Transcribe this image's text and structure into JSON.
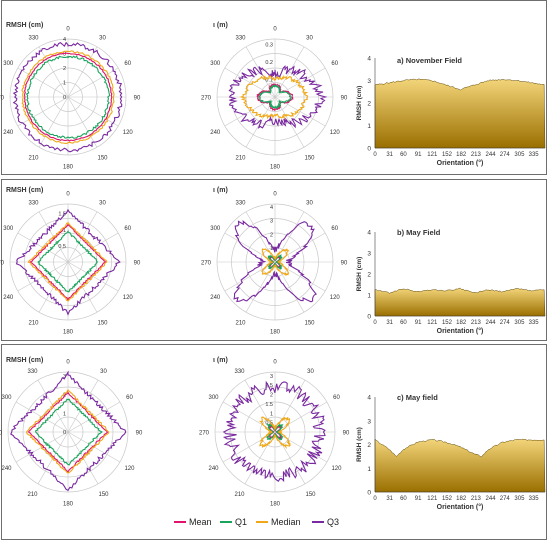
{
  "chart_data": [
    {
      "type": "polar",
      "panel": 1,
      "ylabel": "RMSH (cm)",
      "radial_ticks": [
        "0",
        "1",
        "2",
        "3",
        "4"
      ],
      "angle_ticks": [
        "0",
        "30",
        "60",
        "90",
        "120",
        "150",
        "180",
        "210",
        "240",
        "270",
        "300",
        "330"
      ],
      "rmax": 4,
      "series": [
        {
          "name": "Mean",
          "shape": "circle",
          "r": [
            3.0,
            3.0,
            3.0,
            3.0
          ],
          "noise": 0.04
        },
        {
          "name": "Q1",
          "shape": "circle",
          "r": [
            2.8,
            2.8,
            2.8,
            2.8
          ],
          "noise": 0.08
        },
        {
          "name": "Median",
          "shape": "circle",
          "r": [
            3.15,
            3.15,
            3.15,
            3.15
          ],
          "noise": 0.06
        },
        {
          "name": "Q3",
          "shape": "circle",
          "r": [
            3.65,
            3.65,
            3.65,
            3.65
          ],
          "noise": 0.14
        }
      ]
    },
    {
      "type": "polar",
      "panel": 1,
      "ylabel": "ι (m)",
      "radial_ticks": [
        "0.1",
        "0.2",
        "0.3"
      ],
      "angle_ticks": [
        "0",
        "30",
        "60",
        "90",
        "120",
        "150",
        "180",
        "210",
        "240",
        "270",
        "300",
        "330"
      ],
      "rmax": 0.33,
      "series": [
        {
          "name": "Mean",
          "shape": "leaf",
          "r": [
            0.07,
            0.1,
            0.07,
            0.1
          ],
          "noise": 0.005
        },
        {
          "name": "Q1",
          "shape": "leaf",
          "r": [
            0.06,
            0.09,
            0.06,
            0.09
          ],
          "noise": 0.006
        },
        {
          "name": "Median",
          "shape": "ellipse",
          "r": [
            0.1,
            0.18,
            0.1,
            0.18
          ],
          "noise": 0.012
        },
        {
          "name": "Q3",
          "shape": "ellipse",
          "r": [
            0.13,
            0.26,
            0.13,
            0.26
          ],
          "noise": 0.03
        }
      ]
    },
    {
      "type": "area",
      "panel_title": "a) November Field",
      "ylabel": "RMSH (cm)",
      "xlabel": "Orientation (°)",
      "x_ticks": [
        "0",
        "31",
        "60",
        "91",
        "121",
        "152",
        "182",
        "213",
        "244",
        "274",
        "305",
        "335"
      ],
      "y_ticks": [
        "0",
        "1",
        "2",
        "3",
        "4"
      ],
      "ylim": [
        0,
        4
      ],
      "x": [
        0,
        30,
        60,
        90,
        120,
        150,
        180,
        210,
        240,
        270,
        300,
        330,
        359
      ],
      "values": [
        2.8,
        2.9,
        3.0,
        3.05,
        3.0,
        2.8,
        2.6,
        2.8,
        3.0,
        3.05,
        3.0,
        2.9,
        2.8
      ]
    },
    {
      "type": "polar",
      "panel": 2,
      "ylabel": "RMSH (cm)",
      "radial_ticks": [
        "0.5",
        "1",
        "1.5"
      ],
      "angle_ticks": [
        "0",
        "30",
        "60",
        "90",
        "120",
        "150",
        "180",
        "210",
        "240",
        "270",
        "300",
        "330"
      ],
      "rmax": 1.8,
      "series": [
        {
          "name": "Mean",
          "shape": "square",
          "r": [
            1.05,
            1.05,
            1.05,
            1.05
          ],
          "noise": 0.02
        },
        {
          "name": "Q1",
          "shape": "square",
          "r": [
            0.85,
            0.85,
            0.85,
            0.85
          ],
          "noise": 0.03
        },
        {
          "name": "Median",
          "shape": "square",
          "r": [
            1.1,
            1.1,
            1.1,
            1.1
          ],
          "noise": 0.03
        },
        {
          "name": "Q3",
          "shape": "square",
          "r": [
            1.45,
            1.45,
            1.45,
            1.45
          ],
          "noise": 0.06
        }
      ]
    },
    {
      "type": "polar",
      "panel": 2,
      "ylabel": "ι (m)",
      "radial_ticks": [
        "1",
        "2",
        "3",
        "4"
      ],
      "angle_ticks": [
        "0",
        "30",
        "60",
        "90",
        "120",
        "150",
        "180",
        "210",
        "240",
        "270",
        "300",
        "330"
      ],
      "rmax": 4.2,
      "series": [
        {
          "name": "Mean",
          "shape": "star",
          "r": [
            0.5,
            0.5,
            0.5,
            0.5
          ],
          "noise": 0.05
        },
        {
          "name": "Q1",
          "shape": "star",
          "r": [
            0.6,
            0.6,
            0.6,
            0.6
          ],
          "noise": 0.07
        },
        {
          "name": "Median",
          "shape": "star",
          "r": [
            1.2,
            1.2,
            1.2,
            1.2
          ],
          "noise": 0.12
        },
        {
          "name": "Q3",
          "shape": "star",
          "r": [
            3.8,
            3.8,
            3.8,
            3.8
          ],
          "noise": 0.25
        }
      ]
    },
    {
      "type": "area",
      "panel_title": "b) May Field",
      "ylabel": "RMSH (cm)",
      "xlabel": "Orientation (°)",
      "x_ticks": [
        "0",
        "31",
        "60",
        "91",
        "121",
        "152",
        "182",
        "213",
        "244",
        "274",
        "305",
        "335"
      ],
      "y_ticks": [
        "0",
        "1",
        "2",
        "3",
        "4"
      ],
      "ylim": [
        0,
        4
      ],
      "x": [
        0,
        30,
        60,
        90,
        120,
        150,
        180,
        210,
        240,
        270,
        300,
        330,
        359
      ],
      "values": [
        1.25,
        1.1,
        1.3,
        1.15,
        1.25,
        1.2,
        1.3,
        1.1,
        1.25,
        1.15,
        1.3,
        1.2,
        1.25
      ]
    },
    {
      "type": "polar",
      "panel": 3,
      "ylabel": "RMSH (cm)",
      "radial_ticks": [
        "0",
        "1",
        "2",
        "3"
      ],
      "angle_ticks": [
        "0",
        "30",
        "60",
        "90",
        "120",
        "150",
        "180",
        "210",
        "240",
        "270",
        "300",
        "330"
      ],
      "rmax": 3.2,
      "series": [
        {
          "name": "Mean",
          "shape": "square",
          "r": [
            1.9,
            1.9,
            1.9,
            1.9
          ],
          "noise": 0.04
        },
        {
          "name": "Q1",
          "shape": "square",
          "r": [
            1.6,
            1.6,
            1.6,
            1.6
          ],
          "noise": 0.05
        },
        {
          "name": "Median",
          "shape": "square",
          "r": [
            2.0,
            2.0,
            2.0,
            2.0
          ],
          "noise": 0.06
        },
        {
          "name": "Q3",
          "shape": "square",
          "r": [
            2.8,
            2.8,
            2.8,
            2.8
          ],
          "noise": 0.1
        }
      ]
    },
    {
      "type": "polar",
      "panel": 3,
      "ylabel": "ι (m)",
      "radial_ticks": [
        "0.5",
        "1",
        "1.5",
        "2",
        "2.5",
        "3"
      ],
      "angle_ticks": [
        "0",
        "30",
        "60",
        "90",
        "120",
        "150",
        "180",
        "210",
        "240",
        "270",
        "300",
        "330"
      ],
      "rmax": 3.2,
      "series": [
        {
          "name": "Mean",
          "shape": "star",
          "r": [
            0.4,
            0.4,
            0.4,
            0.4
          ],
          "noise": 0.05
        },
        {
          "name": "Q1",
          "shape": "star",
          "r": [
            0.5,
            0.5,
            0.5,
            0.5
          ],
          "noise": 0.06
        },
        {
          "name": "Median",
          "shape": "star",
          "r": [
            1.0,
            1.0,
            1.0,
            1.0
          ],
          "noise": 0.1
        },
        {
          "name": "Q3",
          "shape": "circle",
          "r": [
            2.4,
            2.4,
            2.4,
            2.4
          ],
          "noise": 0.35
        }
      ]
    },
    {
      "type": "area",
      "panel_title": "c) May field",
      "ylabel": "RMSH (cm)",
      "xlabel": "Orientation (°)",
      "x_ticks": [
        "0",
        "31",
        "60",
        "91",
        "121",
        "152",
        "182",
        "213",
        "244",
        "274",
        "305",
        "335"
      ],
      "y_ticks": [
        "0",
        "1",
        "2",
        "3",
        "4"
      ],
      "ylim": [
        0,
        4
      ],
      "x": [
        0,
        30,
        45,
        60,
        90,
        120,
        150,
        180,
        210,
        225,
        240,
        270,
        300,
        330,
        359
      ],
      "values": [
        2.2,
        1.8,
        1.5,
        1.8,
        2.1,
        2.2,
        2.1,
        1.9,
        1.6,
        1.5,
        1.8,
        2.1,
        2.2,
        2.2,
        2.2
      ]
    }
  ],
  "legend": [
    "Mean",
    "Q1",
    "Median",
    "Q3"
  ],
  "colors": {
    "Mean": "#e0126b",
    "Q1": "#19a35b",
    "Median": "#f0a818",
    "Q3": "#7a2aa0",
    "area_top": "#f3d57a",
    "area_bottom": "#9a6f00",
    "grid": "#c8c8c8"
  }
}
